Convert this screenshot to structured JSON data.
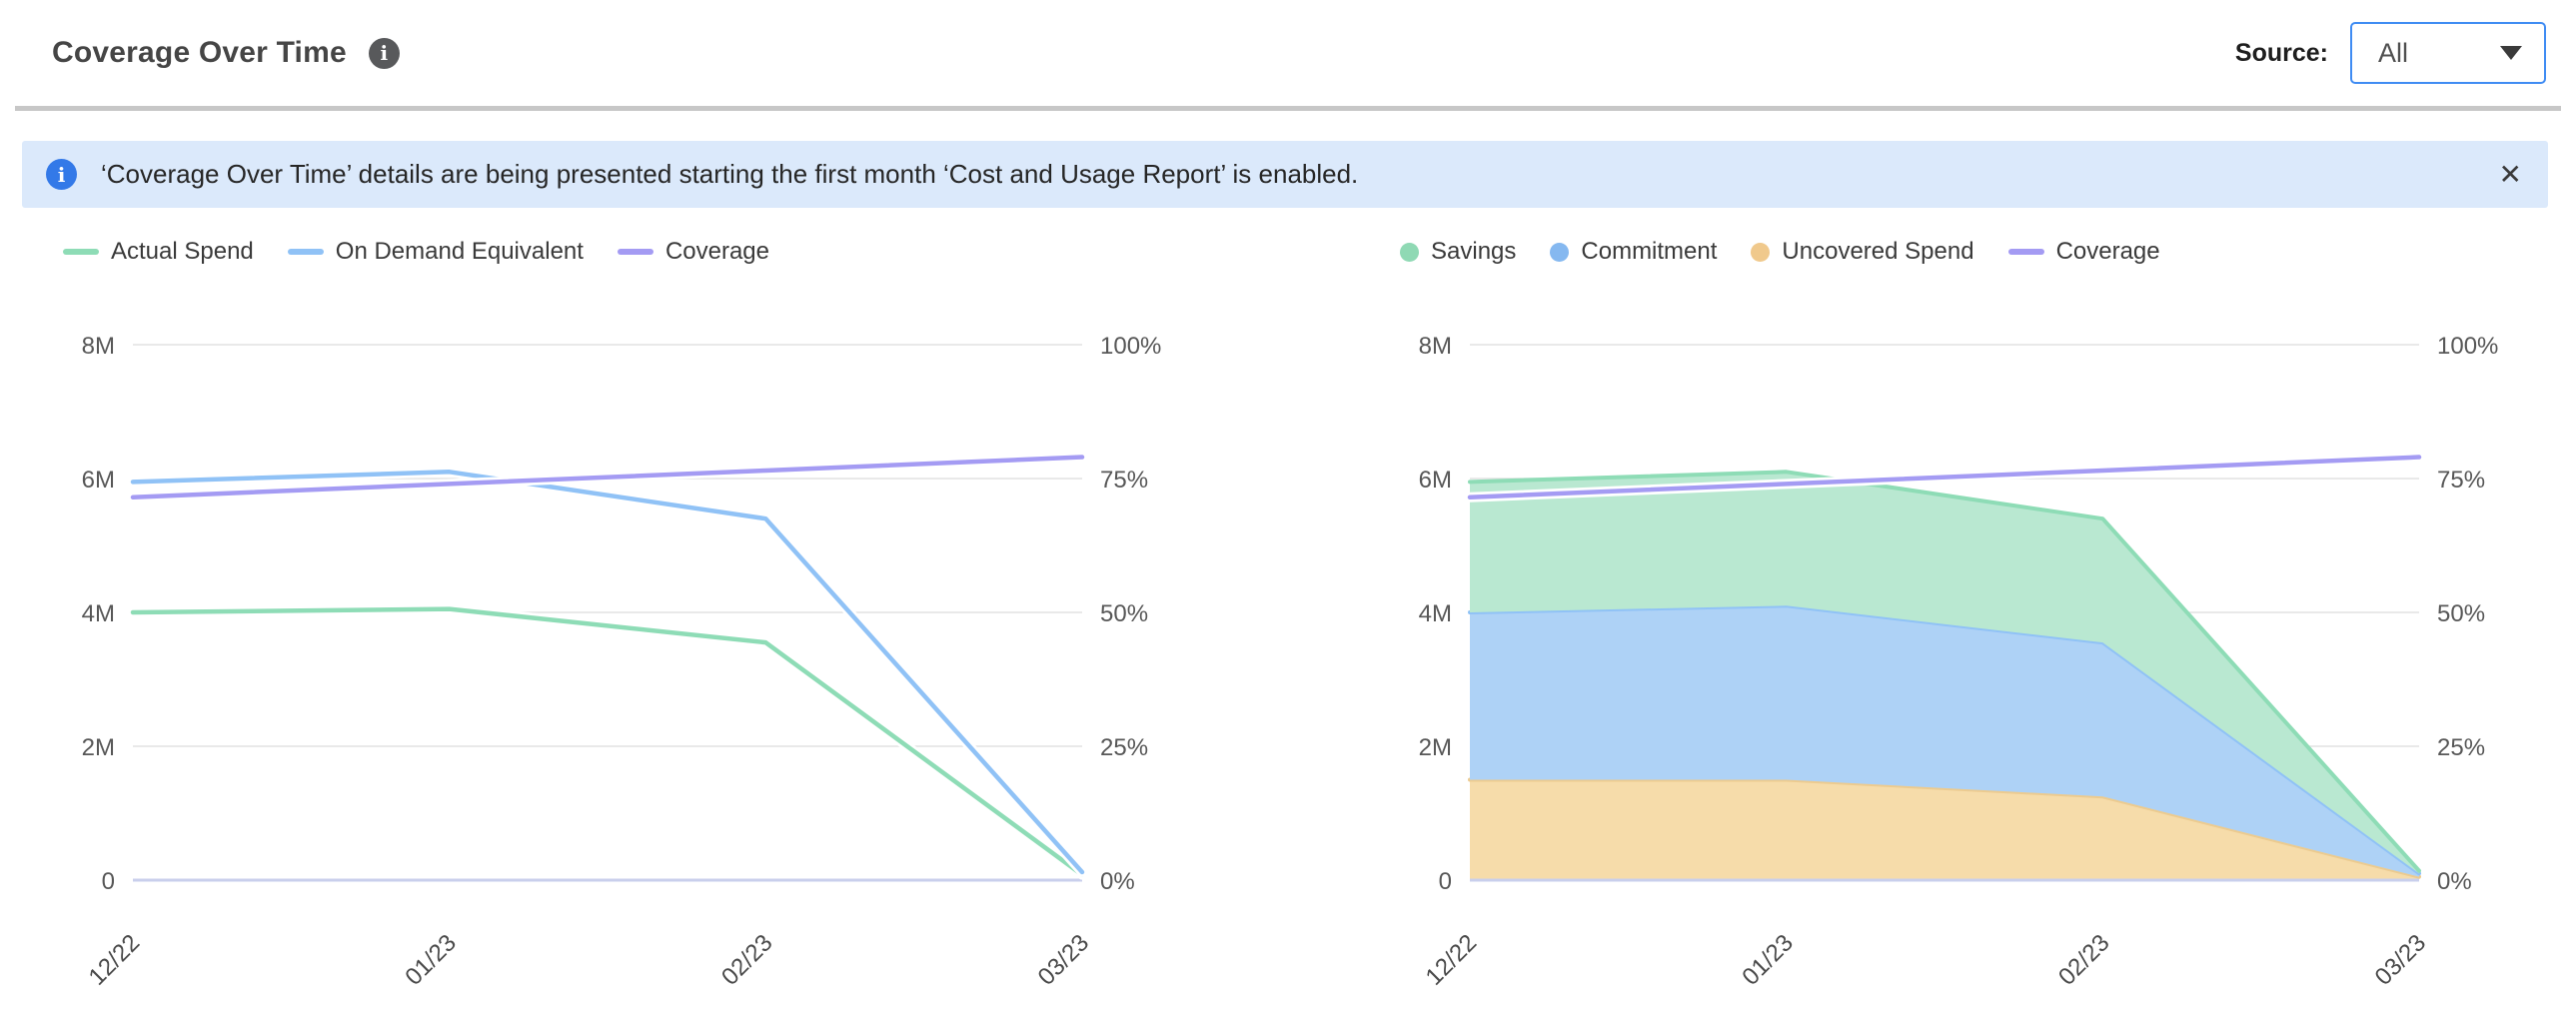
{
  "header": {
    "title": "Coverage Over Time",
    "info_icon": "info-circle",
    "source_label": "Source:",
    "source_value": "All",
    "caret_icon": "chevron-down"
  },
  "banner": {
    "icon": "info-circle",
    "text": "‘Coverage Over Time’ details are being presented starting the first month ‘Cost and Usage Report’ is enabled.",
    "close_icon": "close-x",
    "close_glyph": "✕",
    "background_color": "#dbe9fb",
    "icon_color": "#3379e8"
  },
  "colors": {
    "green": "#8edcb6",
    "green_fill": "#b9e8d1",
    "blue": "#90c2f6",
    "blue_fill": "#aed2f6",
    "orange": "#eccb90",
    "orange_fill": "#f6dcaa",
    "purple": "#a49bf3",
    "baseline": "#c9cfec",
    "gridline": "#e2e2e2",
    "dropdown_border": "#3f8cf3",
    "divider": "#c7c7c7"
  },
  "chart_data": [
    {
      "type": "line",
      "title": "",
      "categories": [
        "12/22",
        "01/23",
        "02/23",
        "03/23"
      ],
      "series": [
        {
          "name": "Actual Spend",
          "kind": "line",
          "axis": "left",
          "color": "#8edcb6",
          "values": [
            4.0,
            4.05,
            3.55,
            0.08
          ]
        },
        {
          "name": "On Demand Equivalent",
          "kind": "line",
          "axis": "left",
          "color": "#90c2f6",
          "values": [
            5.95,
            6.1,
            5.4,
            0.12
          ]
        },
        {
          "name": "Coverage",
          "kind": "line",
          "axis": "right",
          "color": "#a49bf3",
          "values": [
            71.5,
            74,
            76.5,
            79
          ]
        }
      ],
      "legend": [
        {
          "label": "Actual Spend",
          "swatch": "line",
          "color": "#8edcb6"
        },
        {
          "label": "On Demand Equivalent",
          "swatch": "line",
          "color": "#90c2f6"
        },
        {
          "label": "Coverage",
          "swatch": "line",
          "color": "#a49bf3"
        }
      ],
      "left_axis_ticks": [
        "8M",
        "6M",
        "4M",
        "2M",
        "0"
      ],
      "right_axis_ticks": [
        "100%",
        "75%",
        "50%",
        "25%",
        "0%"
      ],
      "left_axis_max": 8,
      "right_axis_max": 100,
      "left_axis_unit": "millions",
      "right_axis_unit": "percent",
      "grid": "horizontal"
    },
    {
      "type": "area",
      "stacked": true,
      "title": "",
      "categories": [
        "12/22",
        "01/23",
        "02/23",
        "03/23"
      ],
      "series": [
        {
          "name": "Uncovered Spend",
          "kind": "area",
          "axis": "left",
          "fill": "#f6dcaa",
          "stroke": "#eccb90",
          "values": [
            1.5,
            1.5,
            1.25,
            0.05
          ]
        },
        {
          "name": "Commitment",
          "kind": "area",
          "axis": "left",
          "fill": "#aed2f6",
          "stroke": "#90c2f6",
          "values": [
            2.5,
            2.6,
            2.3,
            0.05
          ]
        },
        {
          "name": "Savings",
          "kind": "area",
          "axis": "left",
          "fill": "#b9e8d1",
          "stroke": "#8edcb6",
          "values": [
            1.95,
            2.0,
            1.85,
            0.04
          ]
        },
        {
          "name": "Coverage",
          "kind": "line",
          "axis": "right",
          "color": "#a49bf3",
          "values": [
            71.5,
            74,
            76.5,
            79
          ]
        }
      ],
      "legend": [
        {
          "label": "Savings",
          "swatch": "dot",
          "color": "#8fd9b4"
        },
        {
          "label": "Commitment",
          "swatch": "dot",
          "color": "#85b8f0"
        },
        {
          "label": "Uncovered Spend",
          "swatch": "dot",
          "color": "#f0c98c"
        },
        {
          "label": "Coverage",
          "swatch": "line",
          "color": "#a49bf3"
        }
      ],
      "left_axis_ticks": [
        "8M",
        "6M",
        "4M",
        "2M",
        "0"
      ],
      "right_axis_ticks": [
        "100%",
        "75%",
        "50%",
        "25%",
        "0%"
      ],
      "left_axis_max": 8,
      "right_axis_max": 100,
      "left_axis_unit": "millions",
      "right_axis_unit": "percent",
      "grid": "horizontal"
    }
  ]
}
